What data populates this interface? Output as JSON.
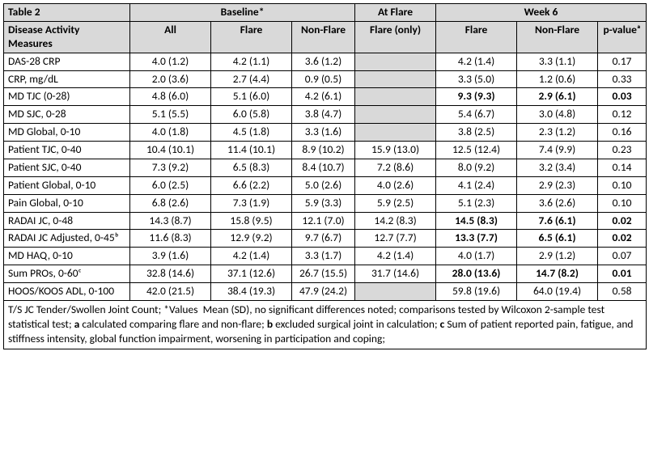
{
  "table": {
    "caption": "Table 2",
    "header_groups": {
      "baseline": "Baseline*",
      "at_flare": "At Flare",
      "week6": "Week 6"
    },
    "col_heads": {
      "measures": "Disease Activity Measures",
      "all": "All",
      "flare": "Flare",
      "nonflare": "Non-Flare",
      "flare_only": "Flare (only)",
      "w6_flare": "Flare",
      "w6_nonflare": "Non-Flare",
      "pvalue": "p-valueᵃ"
    },
    "rows": [
      {
        "label": "DAS-28 CRP",
        "all": "4.0 (1.2)",
        "bf": "4.2 (1.1)",
        "bnf": "3.6 (1.2)",
        "af": "",
        "w6f": "4.2 (1.4)",
        "w6nf": "3.3 (1.1)",
        "p": "0.17",
        "shade_af": true
      },
      {
        "label": "CRP, mg/dL",
        "all": "2.0 (3.6)",
        "bf": "2.7 (4.4)",
        "bnf": "0.9 (0.5)",
        "af": "",
        "w6f": "3.3 (5.0)",
        "w6nf": "1.2 (0.6)",
        "p": "0.33",
        "shade_af": true
      },
      {
        "label": "MD TJC (0-28)",
        "all": "4.8 (6.0)",
        "bf": "5.1 (6.0)",
        "bnf": "4.2 (6.1)",
        "af": "",
        "w6f": "9.3 (9.3)",
        "w6nf": "2.9 (6.1)",
        "p": "0.03",
        "shade_af": true,
        "bold_w6": true
      },
      {
        "label": "MD SJC, 0-28",
        "all": "5.1 (5.5)",
        "bf": "6.0 (5.8)",
        "bnf": "3.8 (4.7)",
        "af": "",
        "w6f": "5.4 (6.7)",
        "w6nf": "3.0 (4.8)",
        "p": "0.12",
        "shade_af": true
      },
      {
        "label": "MD Global, 0-10",
        "all": "4.0 (1.8)",
        "bf": "4.5 (1.8)",
        "bnf": "3.3 (1.6)",
        "af": "",
        "w6f": "3.8 (2.5)",
        "w6nf": "2.3 (1.2)",
        "p": "0.16",
        "shade_af": true
      },
      {
        "label": "Patient TJC, 0-40",
        "all": "10.4 (10.1)",
        "bf": "11.4 (10.1)",
        "bnf": "8.9 (10.2)",
        "af": "15.9 (13.0)",
        "w6f": "12.5 (12.4)",
        "w6nf": "7.4 (9.9)",
        "p": "0.23"
      },
      {
        "label": "Patient SJC, 0-40",
        "all": "7.3 (9.2)",
        "bf": "6.5 (8.3)",
        "bnf": "8.4 (10.7)",
        "af": "7.2 (8.6)",
        "w6f": "8.0 (9.2)",
        "w6nf": "3.2 (3.4)",
        "p": "0.14"
      },
      {
        "label": "Patient Global, 0-10",
        "all": "6.0 (2.5)",
        "bf": "6.6 (2.2)",
        "bnf": "5.0 (2.6)",
        "af": "4.0 (2.6)",
        "w6f": "4.1 (2.4)",
        "w6nf": "2.9 (2.3)",
        "p": "0.10"
      },
      {
        "label": "Pain Global, 0-10",
        "all": "6.8 (2.6)",
        "bf": "7.3 (1.9)",
        "bnf": "5.9 (3.3)",
        "af": "5.9 (2.5)",
        "w6f": "5.1 (2.3)",
        "w6nf": "3.6 (2.6)",
        "p": "0.10"
      },
      {
        "label": "RADAI JC, 0-48",
        "all": "14.3 (8.7)",
        "bf": "15.8 (9.5)",
        "bnf": "12.1 (7.0)",
        "af": "14.2 (8.3)",
        "w6f": "14.5 (8.3)",
        "w6nf": "7.6 (6.1)",
        "p": "0.02",
        "bold_w6": true
      },
      {
        "label": "RADAI JC Adjusted, 0-45ᵇ",
        "all": "11.6 (8.3)",
        "bf": "12.9 (9.2)",
        "bnf": "9.7 (6.7)",
        "af": "12.7 (7.7)",
        "w6f": "13.3 (7.7)",
        "w6nf": "6.5 (6.1)",
        "p": "0.02",
        "bold_w6": true
      },
      {
        "label": "MD HAQ, 0-10",
        "all": "3.9 (1.6)",
        "bf": "4.2 (1.4)",
        "bnf": "3.3 (1.7)",
        "af": "4.2 (1.4)",
        "w6f": "4.0 (1.7)",
        "w6nf": "2.9 (1.2)",
        "p": "0.07"
      },
      {
        "label": "Sum PROs, 0-60ᶜ",
        "all": "32.8 (14.6)",
        "bf": "37.1 (12.6)",
        "bnf": "26.7 (15.5)",
        "af": "31.7 (14.6)",
        "w6f": "28.0 (13.6)",
        "w6nf": "14.7 (8.2)",
        "p": "0.01",
        "bold_w6": true
      },
      {
        "label": "HOOS/KOOS ADL, 0-100",
        "all": "42.0 (21.5)",
        "bf": "38.4 (19.3)",
        "bnf": "47.9 (24.2)",
        "af": "",
        "w6f": "59.8 (19.6)",
        "w6nf": "64.0 (19.4)",
        "p": "0.58",
        "shade_af": true
      }
    ],
    "footnote": "T/S JC Tender/Swollen Joint Count; *Values  Mean (SD), no significant differences noted; comparisons tested by Wilcoxon 2-sample test statistical test; a calculated comparing flare and non-flare; b excluded surgical joint in calculation; c Sum of patient reported pain, fatigue, and stiffness intensity, global function impairment, worsening in participation and coping;",
    "colors": {
      "header_bg": "#d9d9d9",
      "border": "#000000",
      "text": "#000000",
      "background": "#ffffff"
    },
    "typography": {
      "font_family": "Calibri, Arial, sans-serif",
      "font_size_pt": 10,
      "header_weight": "bold"
    }
  }
}
